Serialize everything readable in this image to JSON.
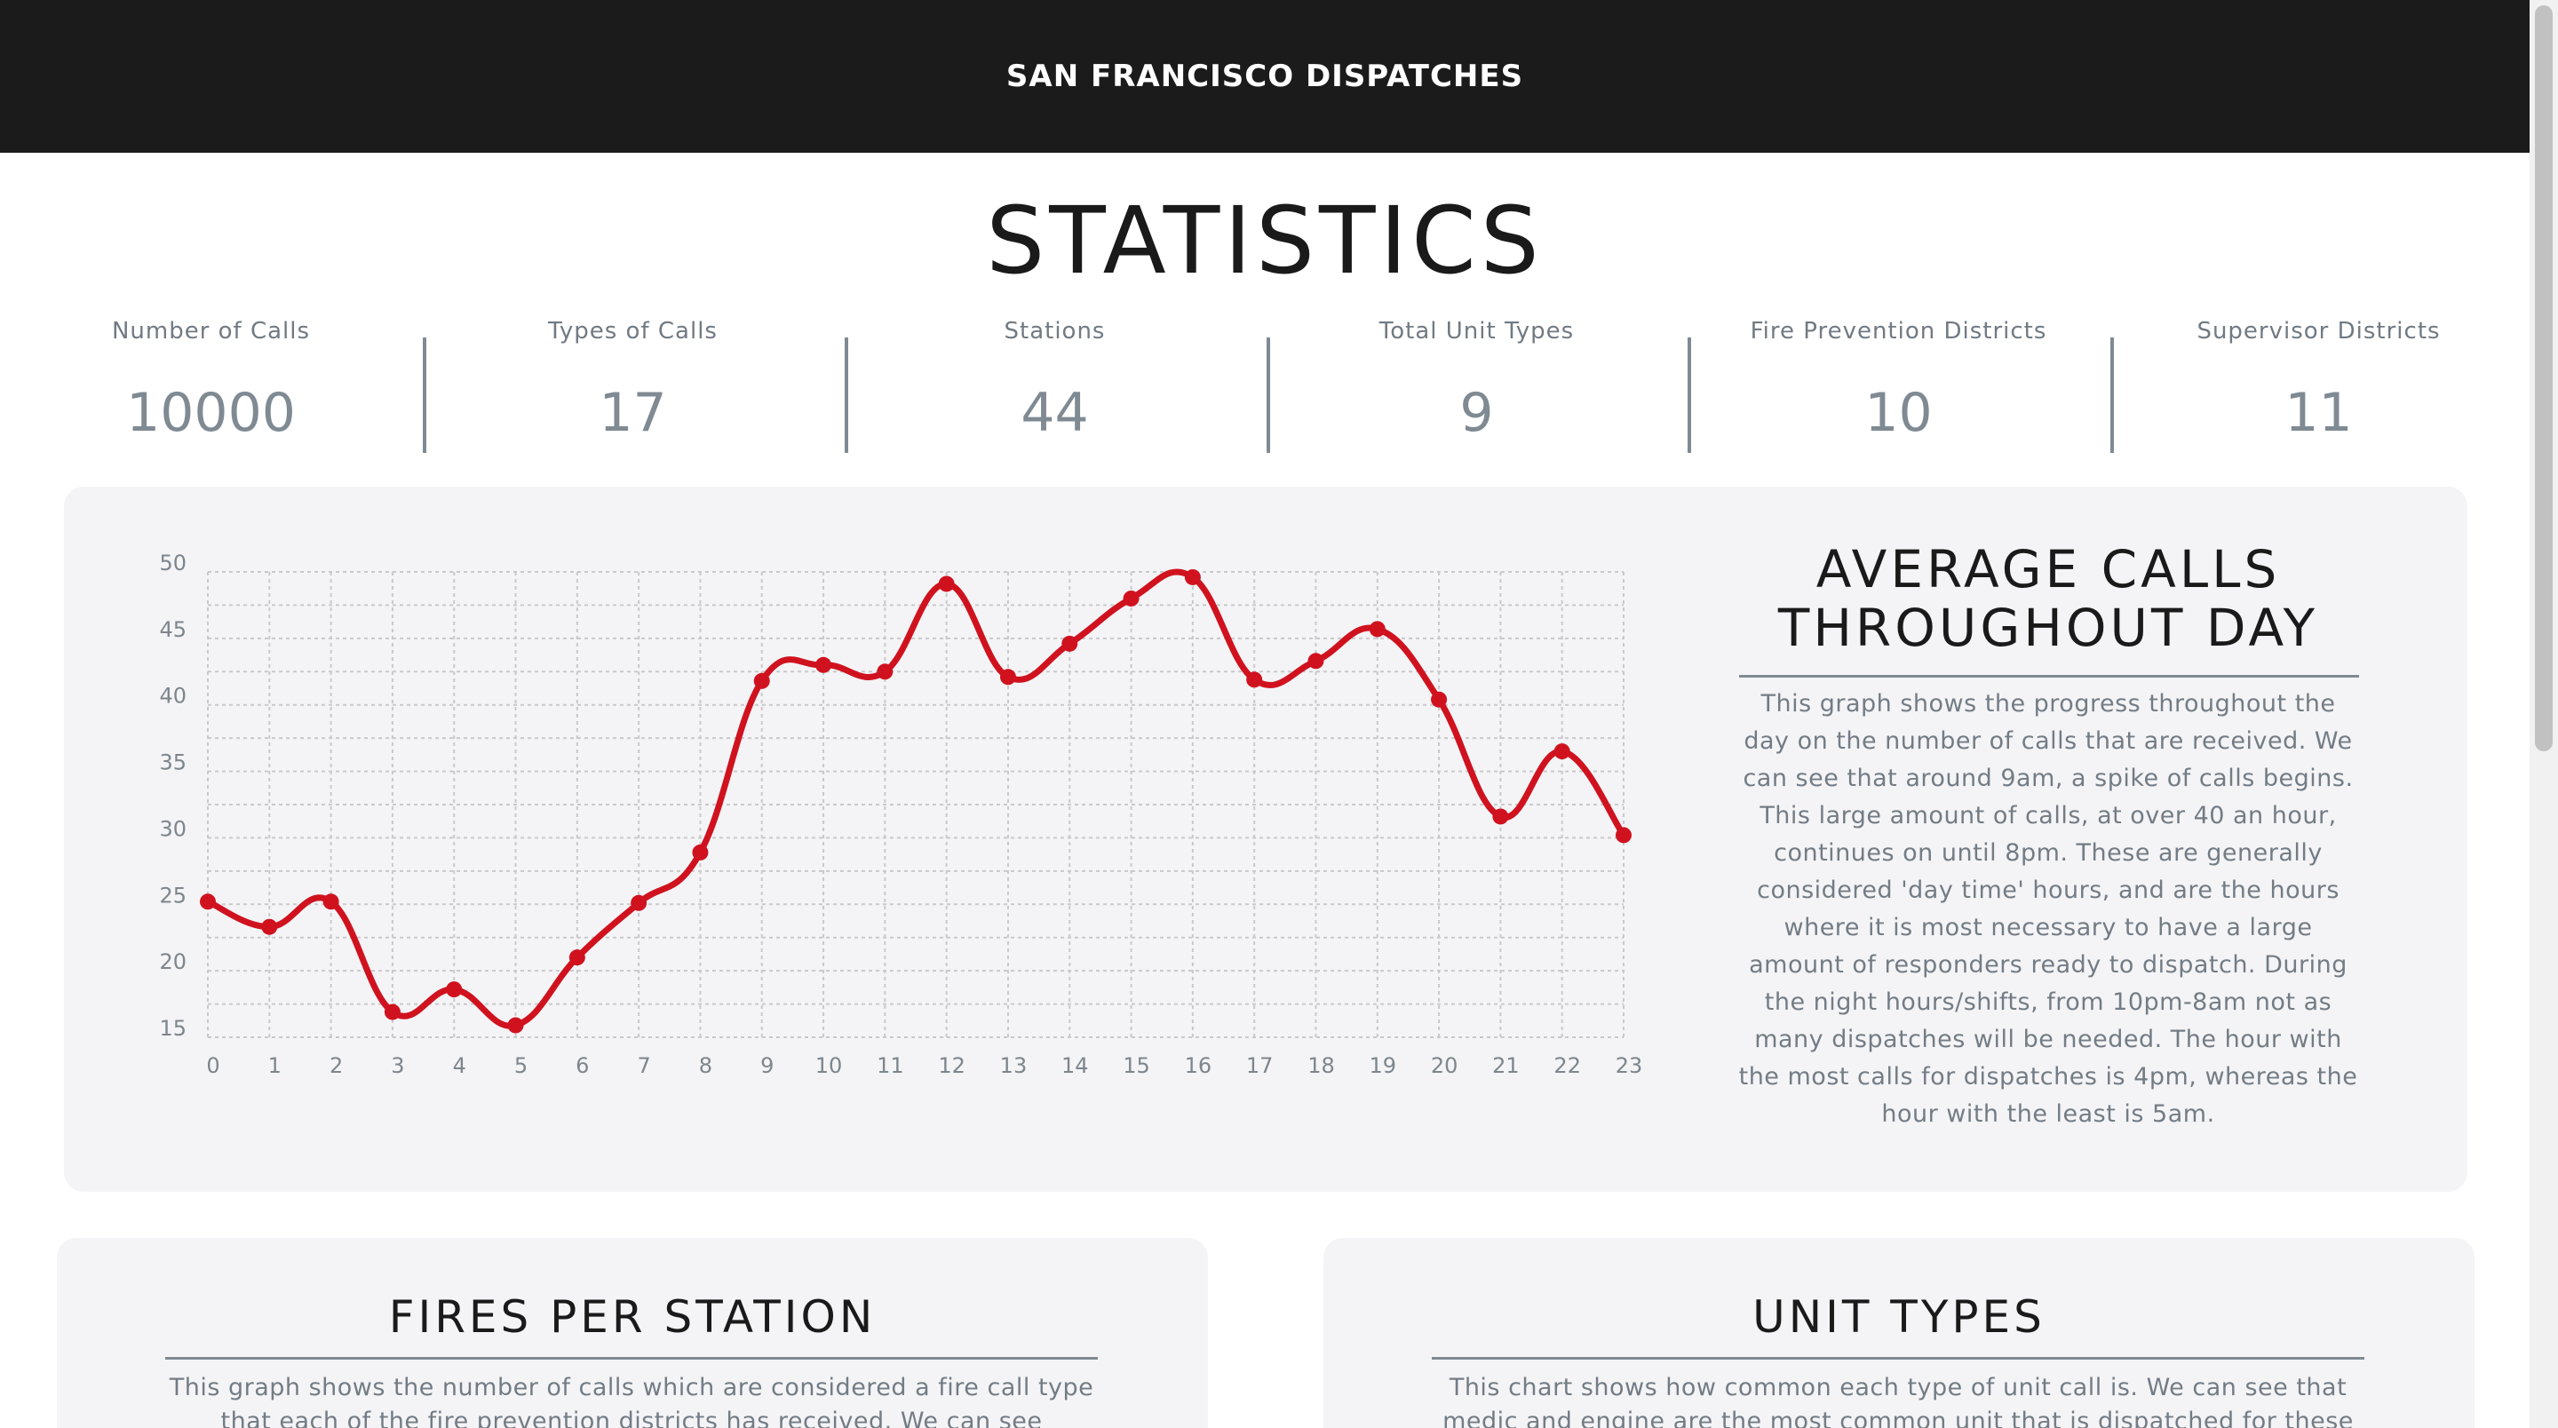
{
  "header": {
    "site_title": "SAN FRANCISCO DISPATCHES"
  },
  "page": {
    "heading": "STATISTICS"
  },
  "stats": [
    {
      "label": "Number of Calls",
      "value": "10000"
    },
    {
      "label": "Types of Calls",
      "value": "17"
    },
    {
      "label": "Stations",
      "value": "44"
    },
    {
      "label": "Total Unit Types",
      "value": "9"
    },
    {
      "label": "Fire Prevention Districts",
      "value": "10"
    },
    {
      "label": "Supervisor Districts",
      "value": "11"
    }
  ],
  "average_calls": {
    "title_line1": "AVERAGE CALLS",
    "title_line2": "THROUGHOUT DAY",
    "description": "This graph shows the progress throughout the day on the number of calls that are received. We can see that around 9am, a spike of calls begins. This large amount of calls, at over 40 an hour, continues on until 8pm. These are generally considered 'day time' hours, and are the hours where it is most necessary to have a large amount of responders ready to dispatch. During the night hours/shifts, from 10pm-8am not as many dispatches will be needed. The hour with the most calls for dispatches is 4pm, whereas the hour with the least is 5am."
  },
  "fires_per_station": {
    "title": "FIRES PER STATION",
    "description": "This graph shows the number of calls which are considered a fire call type that each of the fire prevention districts has received. We can see"
  },
  "unit_types": {
    "title": "UNIT TYPES",
    "description": "This chart shows how common each type of unit call is. We can see that medic and engine are the most common unit that is dispatched for these"
  },
  "colors": {
    "header_bg": "#1b1b1b",
    "card_bg": "#f4f4f6",
    "line": "#d0121f",
    "muted_text": "#737c85"
  },
  "chart_data": {
    "type": "line",
    "x": [
      0,
      1,
      2,
      3,
      4,
      5,
      6,
      7,
      8,
      9,
      10,
      11,
      12,
      13,
      14,
      15,
      16,
      17,
      18,
      19,
      20,
      21,
      22,
      23
    ],
    "series": [
      {
        "values": [
          25.2,
          23.3,
          25.2,
          16.9,
          18.6,
          15.9,
          21.0,
          25.1,
          28.9,
          41.8,
          43.0,
          42.5,
          49.1,
          42.1,
          44.6,
          48.0,
          49.6,
          41.9,
          43.3,
          45.7,
          40.4,
          31.6,
          36.5,
          30.2
        ]
      }
    ],
    "xlabel": "",
    "ylabel": "",
    "ylim": [
      15,
      50
    ],
    "yticks": [
      15,
      20,
      25,
      30,
      35,
      40,
      45,
      50
    ],
    "grid": true,
    "legend": "none"
  }
}
